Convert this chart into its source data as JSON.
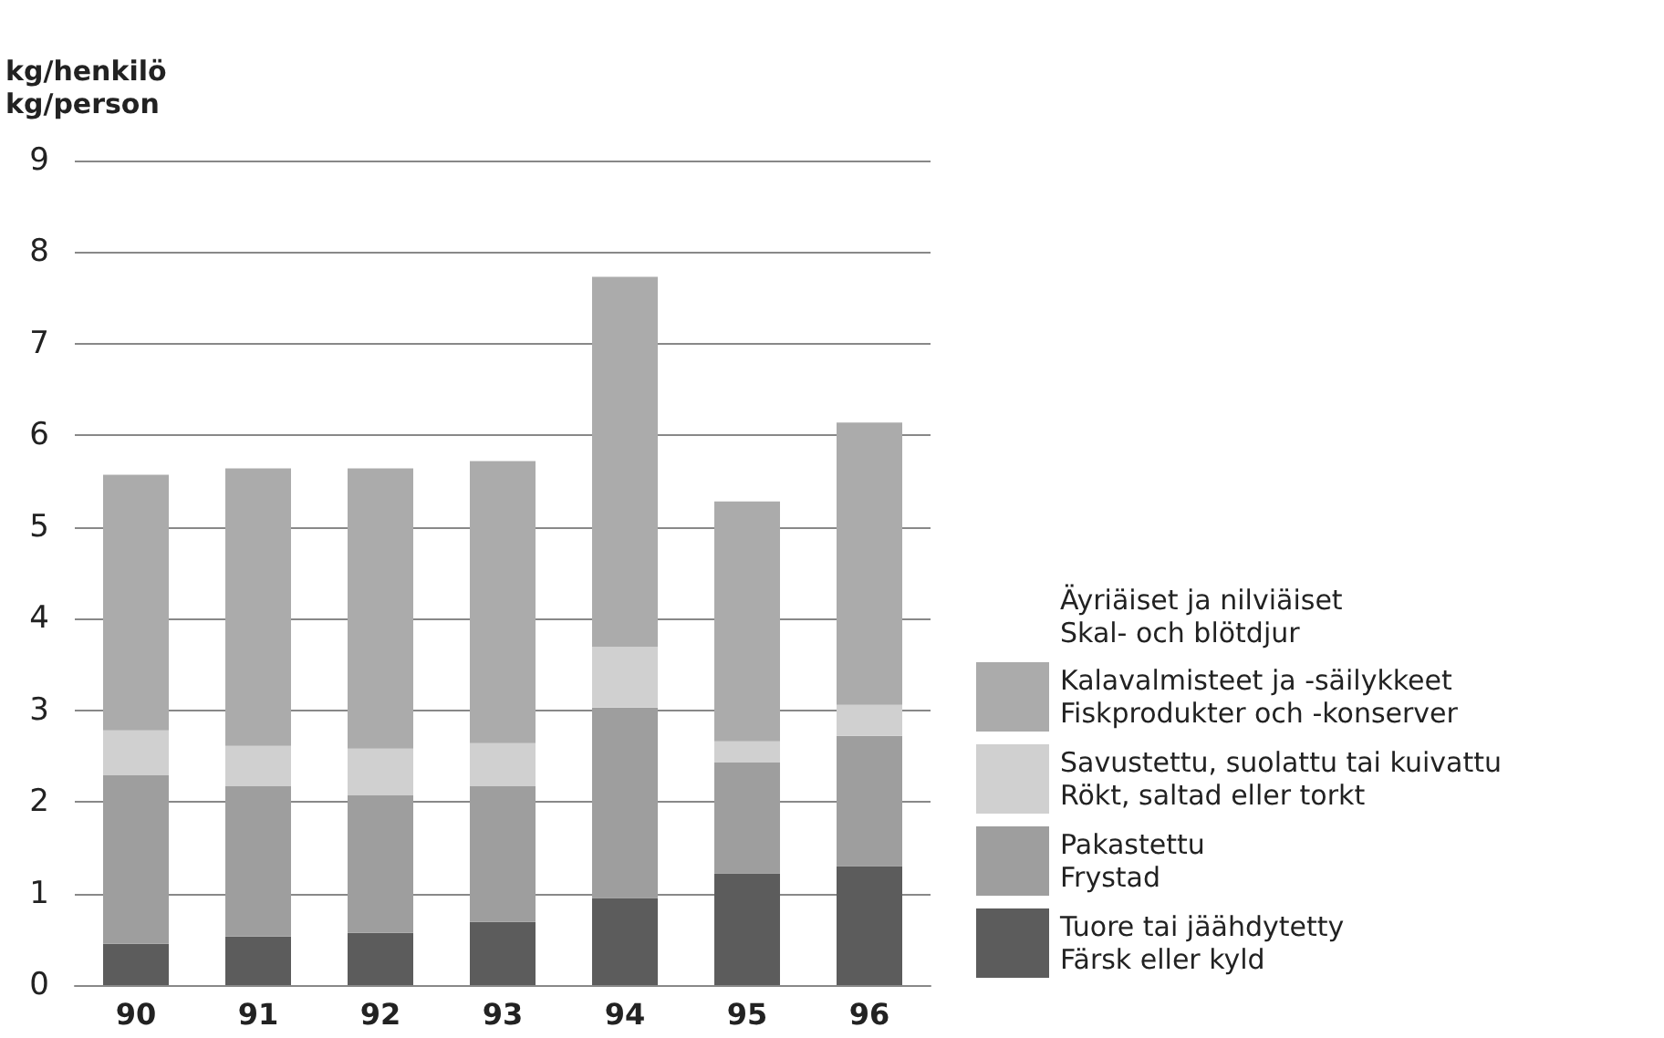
{
  "chart_data": {
    "type": "bar",
    "stacked": true,
    "ylabel": "kg/henkilö\nkg/person",
    "categories": [
      "90",
      "91",
      "92",
      "93",
      "94",
      "95",
      "96"
    ],
    "legend_title": "Äyriäiset ja nilviäiset\nSkal- och blötdjur",
    "series": [
      {
        "name": "Tuore tai jäähdytetty\nFärsk eller kyld",
        "color": "#5c5c5c",
        "values": [
          0.45,
          0.53,
          0.57,
          0.69,
          0.95,
          1.22,
          1.3
        ]
      },
      {
        "name": "Pakastettu\nFrystad",
        "color": "#9e9e9e",
        "values": [
          1.84,
          1.64,
          1.5,
          1.48,
          2.08,
          1.21,
          1.42
        ]
      },
      {
        "name": "Savustettu, suolattu tai kuivattu\nRökt, saltad eller torkt",
        "color": "#d0d0d0",
        "values": [
          0.49,
          0.44,
          0.51,
          0.47,
          0.66,
          0.23,
          0.34
        ]
      },
      {
        "name": "Kalavalmisteet ja -säilykkeet\nFiskprodukter och -konserver",
        "color": "#ababab",
        "values": [
          2.79,
          3.03,
          3.06,
          3.08,
          4.04,
          2.62,
          3.08
        ]
      }
    ],
    "ylim": [
      0,
      9
    ],
    "yticks": [
      0,
      1,
      2,
      3,
      4,
      5,
      6,
      7,
      8,
      9
    ],
    "grid": "y",
    "legend": "right"
  }
}
